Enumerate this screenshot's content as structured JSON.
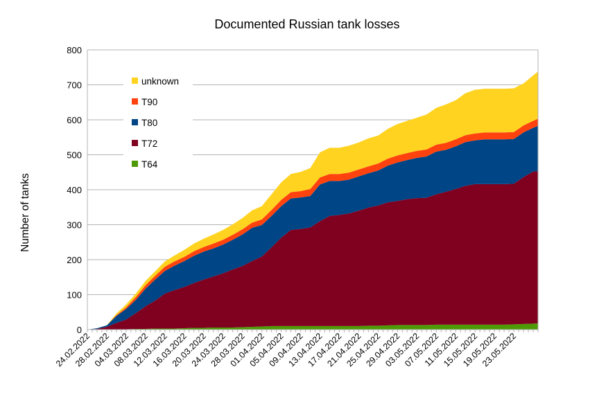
{
  "chart_data": {
    "type": "area",
    "stacked": true,
    "title": "Documented Russian tank losses",
    "xlabel": "",
    "ylabel": "Number of tanks",
    "ylim": [
      0,
      800
    ],
    "y_ticks": [
      0,
      100,
      200,
      300,
      400,
      500,
      600,
      700,
      800
    ],
    "grid": "horizontal",
    "legend_position": "upper-left inside plot",
    "x_start": "24.02.2022",
    "x_end": "28.05.2022",
    "x_tick_labels": [
      "24.02.2022",
      "28.02.2022",
      "04.03.2022",
      "08.03.2022",
      "12.03.2022",
      "16.03.2022",
      "20.03.2022",
      "24.03.2022",
      "28.03.2022",
      "01.04.2022",
      "05.04.2022",
      "09.04.2022",
      "13.04.2022",
      "17.04.2022",
      "21.04.2022",
      "25.04.2022",
      "29.04.2022",
      "03.05.2022",
      "07.05.2022",
      "11.05.2022",
      "15.05.2022",
      "19.05.2022",
      "23.05.2022"
    ],
    "x": [
      "24.02.2022",
      "26.02.2022",
      "28.02.2022",
      "02.03.2022",
      "04.03.2022",
      "06.03.2022",
      "08.03.2022",
      "10.03.2022",
      "12.03.2022",
      "14.03.2022",
      "16.03.2022",
      "18.03.2022",
      "20.03.2022",
      "22.03.2022",
      "24.03.2022",
      "26.03.2022",
      "28.03.2022",
      "30.03.2022",
      "01.04.2022",
      "03.04.2022",
      "05.04.2022",
      "07.04.2022",
      "09.04.2022",
      "11.04.2022",
      "13.04.2022",
      "15.04.2022",
      "17.04.2022",
      "19.04.2022",
      "21.04.2022",
      "23.04.2022",
      "25.04.2022",
      "27.04.2022",
      "29.04.2022",
      "01.05.2022",
      "03.05.2022",
      "05.05.2022",
      "07.05.2022",
      "09.05.2022",
      "11.05.2022",
      "13.05.2022",
      "15.05.2022",
      "17.05.2022",
      "19.05.2022",
      "21.05.2022",
      "23.05.2022",
      "25.05.2022",
      "27.05.2022",
      "28.05.2022"
    ],
    "series": [
      {
        "name": "T64",
        "color": "#4e9a06",
        "values": [
          0,
          0,
          0,
          1,
          1,
          2,
          2,
          3,
          3,
          3,
          4,
          5,
          5,
          6,
          6,
          6,
          7,
          8,
          9,
          10,
          10,
          10,
          10,
          10,
          10,
          10,
          10,
          10,
          10,
          11,
          11,
          12,
          13,
          13,
          13,
          13,
          14,
          14,
          14,
          14,
          14,
          14,
          14,
          14,
          15,
          16,
          17,
          18
        ]
      },
      {
        "name": "T72",
        "color": "#800020",
        "values": [
          0,
          2,
          8,
          18,
          28,
          45,
          65,
          80,
          100,
          110,
          118,
          128,
          138,
          146,
          155,
          166,
          175,
          188,
          200,
          225,
          253,
          275,
          278,
          282,
          300,
          315,
          318,
          322,
          330,
          338,
          344,
          352,
          355,
          360,
          363,
          364,
          373,
          380,
          388,
          397,
          402,
          402,
          402,
          402,
          402,
          420,
          435,
          435
        ]
      },
      {
        "name": "T80",
        "color": "#004586",
        "values": [
          0,
          2,
          4,
          20,
          30,
          38,
          50,
          60,
          65,
          70,
          74,
          78,
          80,
          80,
          82,
          85,
          90,
          95,
          90,
          90,
          90,
          90,
          90,
          90,
          105,
          100,
          97,
          97,
          98,
          98,
          100,
          105,
          110,
          112,
          115,
          118,
          122,
          120,
          122,
          125,
          125,
          128,
          128,
          128,
          128,
          128,
          125,
          130
        ]
      },
      {
        "name": "T90",
        "color": "#ff420e",
        "values": [
          0,
          0,
          0,
          2,
          5,
          8,
          10,
          11,
          12,
          12,
          12,
          13,
          13,
          14,
          14,
          14,
          15,
          15,
          16,
          17,
          18,
          18,
          18,
          20,
          20,
          20,
          20,
          20,
          20,
          20,
          20,
          20,
          20,
          20,
          20,
          20,
          20,
          20,
          20,
          20,
          20,
          20,
          20,
          20,
          20,
          20,
          20,
          20
        ]
      },
      {
        "name": "unknown",
        "color": "#ffd320",
        "values": [
          0,
          0,
          0,
          5,
          8,
          10,
          12,
          13,
          15,
          17,
          20,
          22,
          24,
          26,
          28,
          30,
          32,
          35,
          38,
          45,
          50,
          52,
          55,
          60,
          72,
          75,
          75,
          77,
          77,
          80,
          80,
          85,
          90,
          92,
          95,
          100,
          105,
          110,
          112,
          120,
          125,
          125,
          125,
          125,
          125,
          120,
          130,
          135
        ]
      }
    ]
  }
}
